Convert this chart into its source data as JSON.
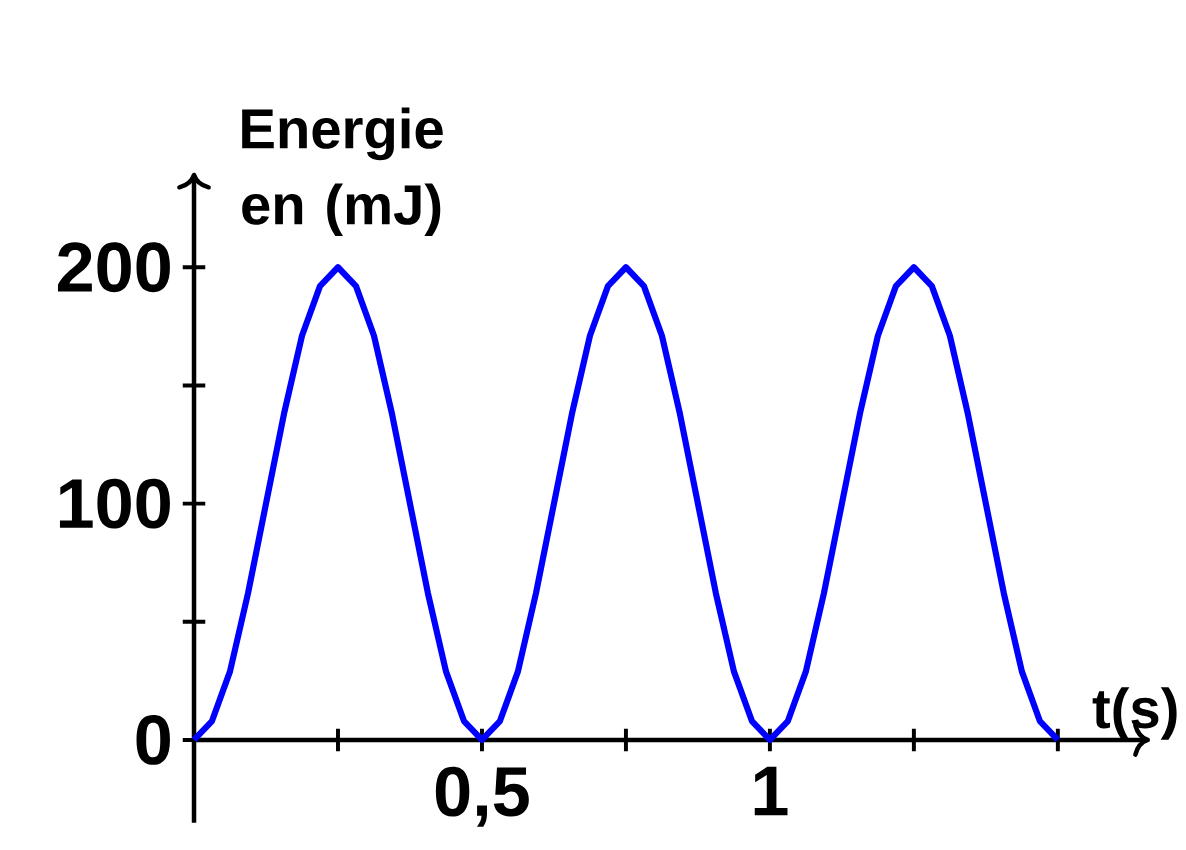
{
  "chart_data": {
    "type": "line",
    "ylabel": "Energie en (mJ)",
    "xlabel": "t(s)",
    "color": "#0000ff",
    "x": [
      0,
      0.03125,
      0.0625,
      0.09375,
      0.125,
      0.15625,
      0.1875,
      0.21875,
      0.25,
      0.28125,
      0.3125,
      0.34375,
      0.375,
      0.40625,
      0.4375,
      0.46875,
      0.5,
      0.53125,
      0.5625,
      0.59375,
      0.625,
      0.65625,
      0.6875,
      0.71875,
      0.75,
      0.78125,
      0.8125,
      0.84375,
      0.875,
      0.90625,
      0.9375,
      0.96875,
      1,
      1.03125,
      1.0625,
      1.09375,
      1.125,
      1.15625,
      1.1875,
      1.21875,
      1.25,
      1.28125,
      1.3125,
      1.34375,
      1.375,
      1.40625,
      1.4375,
      1.46875,
      1.5
    ],
    "values": [
      0,
      8,
      29,
      62,
      100,
      138,
      171,
      192,
      200,
      192,
      171,
      138,
      100,
      62,
      29,
      8,
      0,
      8,
      29,
      62,
      100,
      138,
      171,
      192,
      200,
      192,
      171,
      138,
      100,
      62,
      29,
      8,
      0,
      8,
      29,
      62,
      100,
      138,
      171,
      192,
      200,
      192,
      171,
      138,
      100,
      62,
      29,
      8,
      0
    ],
    "xlim": [
      0,
      1.66
    ],
    "ylim": [
      -35,
      240
    ],
    "xticks": [
      {
        "value": 0.25,
        "label": null
      },
      {
        "value": 0.5,
        "label": "0,5"
      },
      {
        "value": 0.75,
        "label": null
      },
      1,
      {
        "value": 1.25,
        "label": null
      },
      {
        "value": 1.5,
        "label": null
      }
    ],
    "yticks": [
      0,
      {
        "value": 50,
        "label": null
      },
      100,
      {
        "value": 150,
        "label": null
      },
      200
    ]
  }
}
